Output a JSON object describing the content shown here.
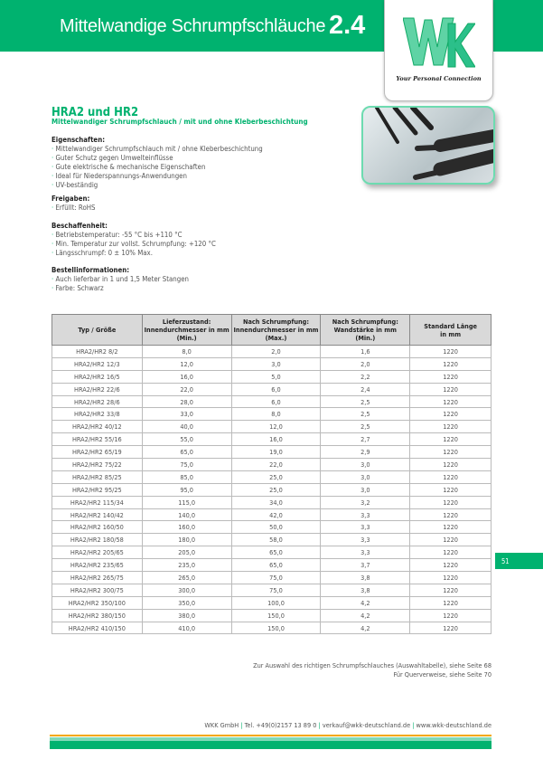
{
  "header": {
    "title": "Mittelwandige Schrumpfschläuche",
    "chapter": "2.4",
    "logo_text": "WKK",
    "slogan": "Your Personal Connection"
  },
  "product": {
    "name": "HRA2 und HR2",
    "subtitle": "Mittelwandiger Schrumpfschlauch / mit und ohne Kleberbeschichtung"
  },
  "sections": [
    {
      "heading": "Eigenschaften:",
      "items": [
        "Mittelwandiger Schrumpfschlauch mit / ohne Kleberbeschichtung",
        "Guter Schutz gegen Umwelteinflüsse",
        "Gute elektrische & mechanische Eigenschaften",
        "Ideal für Niederspannungs-Anwendungen",
        "UV-beständig"
      ]
    },
    {
      "heading": "Freigaben:",
      "items": [
        "Erfüllt: RoHS"
      ]
    },
    {
      "heading": "Beschaffenheit:",
      "items": [
        "Betriebstemperatur: -55 °C bis +110 °C",
        "Min. Temperatur zur vollst. Schrumpfung: +120 °C",
        "Längsschrumpf: 0 ± 10% Max."
      ]
    },
    {
      "heading": "Bestellinformationen:",
      "items": [
        "Auch lieferbar in 1 und 1,5 Meter Stangen",
        "Farbe: Schwarz"
      ]
    }
  ],
  "table": {
    "headers": [
      [
        "Typ / Größe"
      ],
      [
        "Lieferzustand:",
        "Innendurchmesser in mm",
        "(Min.)"
      ],
      [
        "Nach Schrumpfung:",
        "Innendurchmesser in mm",
        "(Max.)"
      ],
      [
        "Nach Schrumpfung:",
        "Wandstärke in mm",
        "(Min.)"
      ],
      [
        "Standard Länge",
        "in mm"
      ]
    ],
    "rows": [
      [
        "HRA2/HR2 8/2",
        "8,0",
        "2,0",
        "1,6",
        "1220"
      ],
      [
        "HRA2/HR2 12/3",
        "12,0",
        "3,0",
        "2,0",
        "1220"
      ],
      [
        "HRA2/HR2 16/5",
        "16,0",
        "5,0",
        "2,2",
        "1220"
      ],
      [
        "HRA2/HR2 22/6",
        "22,0",
        "6,0",
        "2,4",
        "1220"
      ],
      [
        "HRA2/HR2 28/6",
        "28,0",
        "6,0",
        "2,5",
        "1220"
      ],
      [
        "HRA2/HR2 33/8",
        "33,0",
        "8,0",
        "2,5",
        "1220"
      ],
      [
        "HRA2/HR2 40/12",
        "40,0",
        "12,0",
        "2,5",
        "1220"
      ],
      [
        "HRA2/HR2 55/16",
        "55,0",
        "16,0",
        "2,7",
        "1220"
      ],
      [
        "HRA2/HR2 65/19",
        "65,0",
        "19,0",
        "2,9",
        "1220"
      ],
      [
        "HRA2/HR2 75/22",
        "75,0",
        "22,0",
        "3,0",
        "1220"
      ],
      [
        "HRA2/HR2 85/25",
        "85,0",
        "25,0",
        "3,0",
        "1220"
      ],
      [
        "HRA2/HR2 95/25",
        "95,0",
        "25,0",
        "3,0",
        "1220"
      ],
      [
        "HRA2/HR2 115/34",
        "115,0",
        "34,0",
        "3,2",
        "1220"
      ],
      [
        "HRA2/HR2 140/42",
        "140,0",
        "42,0",
        "3,3",
        "1220"
      ],
      [
        "HRA2/HR2 160/50",
        "160,0",
        "50,0",
        "3,3",
        "1220"
      ],
      [
        "HRA2/HR2 180/58",
        "180,0",
        "58,0",
        "3,3",
        "1220"
      ],
      [
        "HRA2/HR2 205/65",
        "205,0",
        "65,0",
        "3,3",
        "1220"
      ],
      [
        "HRA2/HR2 235/65",
        "235,0",
        "65,0",
        "3,7",
        "1220"
      ],
      [
        "HRA2/HR2 265/75",
        "265,0",
        "75,0",
        "3,8",
        "1220"
      ],
      [
        "HRA2/HR2 300/75",
        "300,0",
        "75,0",
        "3,8",
        "1220"
      ],
      [
        "HRA2/HR2 350/100",
        "350,0",
        "100,0",
        "4,2",
        "1220"
      ],
      [
        "HRA2/HR2 380/150",
        "380,0",
        "150,0",
        "4,2",
        "1220"
      ],
      [
        "HRA2/HR2 410/150",
        "410,0",
        "150,0",
        "4,2",
        "1220"
      ]
    ]
  },
  "references": [
    "Zur Auswahl des richtigen Schrumpfschlauches (Auswahltabelle), siehe Seite 68",
    "Für Querverweise, siehe Seite 70"
  ],
  "footer": {
    "company": "WKK GmbH",
    "phone": "Tel. +49(0)2157 13 89 0",
    "email": "verkauf@wkk-deutschland.de",
    "web": "www.wkk-deutschland.de"
  },
  "page_number": "51",
  "colors": {
    "brand_green": "#00b26f",
    "accent_orange": "#f5a800"
  }
}
